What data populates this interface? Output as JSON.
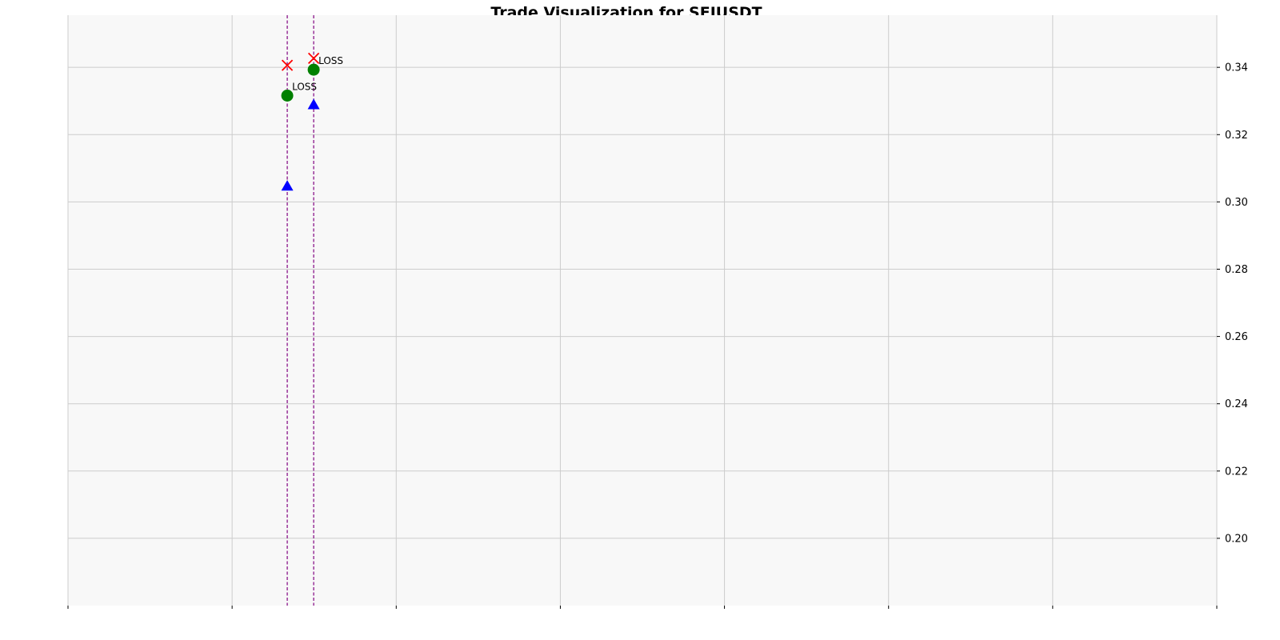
{
  "chart_data": {
    "type": "scatter",
    "title": "Trade Visualization for SEIUSDT",
    "xlabel": "",
    "ylabel": "",
    "grid": true,
    "x_tick_count": 8,
    "xlim": [
      0,
      7
    ],
    "ylim": [
      0.18,
      0.3555
    ],
    "y_ticks": [
      0.2,
      0.22,
      0.24,
      0.26,
      0.28,
      0.3,
      0.32,
      0.34
    ],
    "y_tick_labels": [
      "0.20",
      "0.22",
      "0.24",
      "0.26",
      "0.28",
      "0.30",
      "0.32",
      "0.34"
    ],
    "y_axis_side": "right",
    "trade_lines": [
      1.336,
      1.497
    ],
    "series": [
      {
        "marker": "triangle-up",
        "color": "#0000ff",
        "points": [
          {
            "x": 1.336,
            "y": 0.3047
          },
          {
            "x": 1.497,
            "y": 0.3289
          }
        ]
      },
      {
        "marker": "circle",
        "color": "#008000",
        "points": [
          {
            "x": 1.336,
            "y": 0.3316
          },
          {
            "x": 1.497,
            "y": 0.3393
          }
        ]
      },
      {
        "marker": "x",
        "color": "#ff0000",
        "points": [
          {
            "x": 1.336,
            "y": 0.3406
          },
          {
            "x": 1.497,
            "y": 0.3427
          }
        ]
      }
    ],
    "annotations": [
      {
        "text": "LOSS",
        "x": 1.336,
        "y": 0.3316
      },
      {
        "text": "LOSS",
        "x": 1.497,
        "y": 0.3393
      }
    ],
    "colors": {
      "plot_background": "#f8f8f8",
      "grid": "#cccccc",
      "trade_line": "#800080"
    }
  }
}
